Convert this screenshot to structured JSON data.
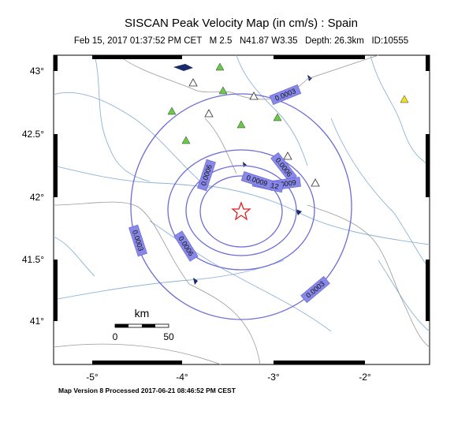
{
  "header": {
    "title": "SISCAN Peak Velocity Map (in cm/s) : Spain",
    "subtitle": "Feb 15, 2017 01:37:52 PM CET   M 2.5   N41.87 W3.35   Depth: 26.3km   ID:10555"
  },
  "map": {
    "lat_labels": [
      "43°",
      "42.5°",
      "42°",
      "41.5°",
      "41°"
    ],
    "lon_labels": [
      "-5°",
      "-4°",
      "-3°",
      "-2°"
    ],
    "contour_labels": [
      "0.0003",
      "0.0003",
      "0.0003",
      "0.0006",
      "0.0006",
      "0.0006",
      "0.0009",
      "0.0009",
      "0.0012"
    ],
    "scale": {
      "title": "km",
      "start": "0",
      "end": "50"
    }
  },
  "footer": "Map Version 8 Processed 2017-06-21 08:46:52 PM CEST"
}
